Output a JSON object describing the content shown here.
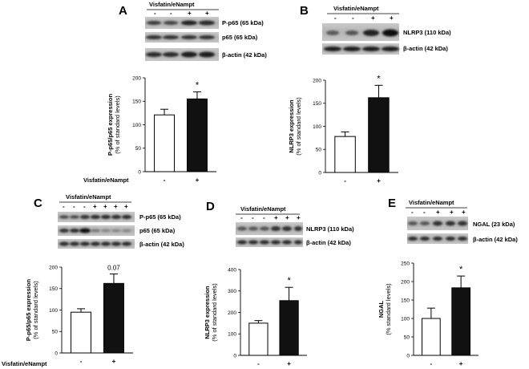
{
  "header": "Visfatin/eNampt",
  "xaxis_label": "Visfatin/eNampt",
  "panels": [
    {
      "letter": "A",
      "group_signs": [
        "-",
        "-",
        "+",
        "+"
      ],
      "blots": [
        "P-p65 (65 kDa)",
        "p65 (65 kDa)",
        "β-actin (42 kDa)"
      ]
    },
    {
      "letter": "B",
      "group_signs": [
        "-",
        "-",
        "+",
        "+"
      ],
      "blots": [
        "NLRP3 (110 kDa)",
        "β-actin (42 kDa)"
      ]
    },
    {
      "letter": "C",
      "group_signs": [
        "-",
        "-",
        "-",
        "+",
        "+",
        "+",
        "+"
      ],
      "blots": [
        "P-p65 (65 kDa)",
        "p65 (65 kDa)",
        "β-actin (42 kDa)"
      ]
    },
    {
      "letter": "D",
      "group_signs": [
        "-",
        "-",
        "-",
        "+",
        "+",
        "+"
      ],
      "blots": [
        "NLRP3 (110 kDa)",
        "β-actin (42 kDa)"
      ]
    },
    {
      "letter": "E",
      "group_signs": [
        "-",
        "-",
        "+",
        "+",
        "+"
      ],
      "blots": [
        "NGAL (23 kDa)",
        "β-actin (42 kDa)"
      ]
    }
  ],
  "chart_data": [
    {
      "panel": "A",
      "type": "bar",
      "categories": [
        "-",
        "+"
      ],
      "values": [
        121,
        155
      ],
      "errors": [
        12,
        15
      ],
      "ylabel": [
        "P-p65/p65 expression",
        "(% of standard levels)"
      ],
      "ylim": [
        0,
        200
      ],
      "yticks": [
        0,
        50,
        100,
        150,
        200
      ],
      "annotation": "*",
      "xlabel": "Visfatin/eNampt",
      "colors": [
        "#ffffff",
        "#111111"
      ]
    },
    {
      "panel": "B",
      "type": "bar",
      "categories": [
        "-",
        "+"
      ],
      "values": [
        78,
        162
      ],
      "errors": [
        10,
        27
      ],
      "ylabel": [
        "NLRP3 expression",
        "(% of standard levels)"
      ],
      "ylim": [
        0,
        200
      ],
      "yticks": [
        0,
        50,
        100,
        150,
        200
      ],
      "annotation": "*",
      "xlabel": "",
      "colors": [
        "#ffffff",
        "#111111"
      ]
    },
    {
      "panel": "C",
      "type": "bar",
      "categories": [
        "-",
        "+"
      ],
      "values": [
        95,
        162
      ],
      "errors": [
        8,
        22
      ],
      "ylabel": [
        "P-p65/p65 expression",
        "(% of standard levels)"
      ],
      "ylim": [
        0,
        200
      ],
      "yticks": [
        0,
        50,
        100,
        150,
        200
      ],
      "annotation": "0.07",
      "xlabel": "Visfatin/eNampt",
      "colors": [
        "#ffffff",
        "#111111"
      ]
    },
    {
      "panel": "D",
      "type": "bar",
      "categories": [
        "-",
        "+"
      ],
      "values": [
        150,
        255
      ],
      "errors": [
        12,
        62
      ],
      "ylabel": [
        "NLRP3 expression",
        "(% of standard levels)"
      ],
      "ylim": [
        0,
        400
      ],
      "yticks": [
        0,
        100,
        200,
        300,
        400
      ],
      "annotation": "*",
      "xlabel": "",
      "colors": [
        "#ffffff",
        "#111111"
      ]
    },
    {
      "panel": "E",
      "type": "bar",
      "categories": [
        "-",
        "+"
      ],
      "values": [
        100,
        183
      ],
      "errors": [
        28,
        32
      ],
      "ylabel": [
        "NGAL",
        "(% standard levels)"
      ],
      "ylim": [
        0,
        250
      ],
      "yticks": [
        0,
        50,
        100,
        150,
        200,
        250
      ],
      "annotation": "*",
      "xlabel": "",
      "colors": [
        "#ffffff",
        "#111111"
      ]
    }
  ]
}
